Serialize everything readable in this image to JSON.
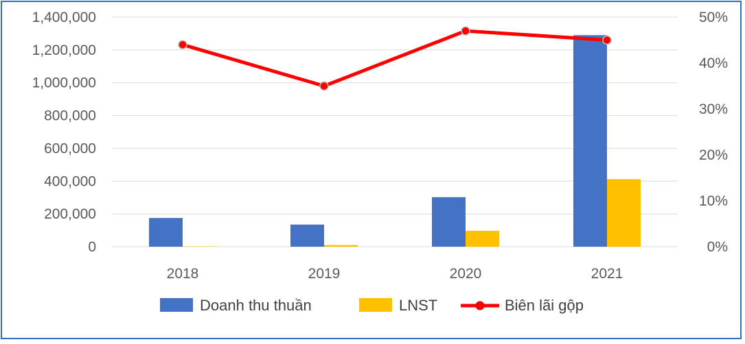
{
  "chart_data": {
    "type": "bar",
    "title": "",
    "xlabel": "",
    "ylabel": "",
    "categories": [
      "2018",
      "2019",
      "2020",
      "2021"
    ],
    "ylim": [
      0,
      1400000
    ],
    "y2lim": [
      0,
      0.5
    ],
    "yticks": [
      "0",
      "200,000",
      "400,000",
      "600,000",
      "800,000",
      "1,000,000",
      "1,200,000",
      "1,400,000"
    ],
    "y2ticks": [
      "0%",
      "10%",
      "20%",
      "30%",
      "40%",
      "50%"
    ],
    "grid": true,
    "legend_position": "bottom",
    "series": [
      {
        "name": "Doanh thu thuần",
        "type": "bar",
        "axis": "left",
        "color": "#4472c4",
        "values": [
          175000,
          135000,
          302000,
          1290000
        ]
      },
      {
        "name": "LNST",
        "type": "bar",
        "axis": "left",
        "color": "#ffc000",
        "values": [
          2000,
          10000,
          97000,
          412000
        ]
      },
      {
        "name": "Biên lãi gộp",
        "type": "line",
        "axis": "right",
        "color": "#ff0000",
        "marker": "circle",
        "values": [
          0.44,
          0.35,
          0.47,
          0.45
        ]
      }
    ]
  }
}
